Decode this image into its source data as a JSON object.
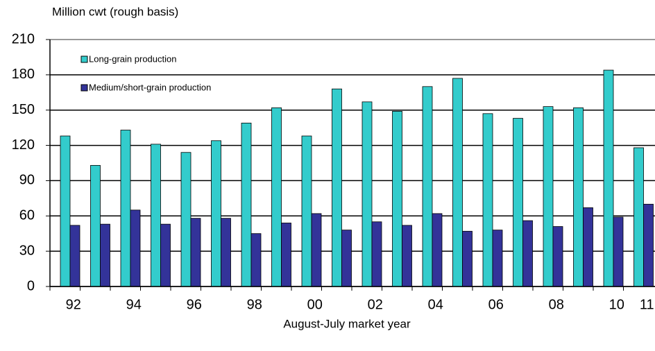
{
  "chart_data": {
    "type": "bar",
    "y_axis_title": "Million cwt (rough basis)",
    "x_axis_title": "August-July market year",
    "categories": [
      "92",
      null,
      "94",
      null,
      "96",
      null,
      "98",
      null,
      "00",
      null,
      "02",
      null,
      "04",
      null,
      "06",
      null,
      "08",
      null,
      "10",
      "11"
    ],
    "series": [
      {
        "name": "Long-grain production",
        "color": "#33cccc",
        "values": [
          128,
          103,
          133,
          121,
          114,
          124,
          139,
          152,
          128,
          168,
          157,
          149,
          170,
          177,
          147,
          143,
          153,
          152,
          184,
          118
        ]
      },
      {
        "name": "Medium/short-grain production",
        "color": "#333399",
        "values": [
          52,
          53,
          65,
          53,
          58,
          58,
          45,
          54,
          62,
          48,
          55,
          52,
          62,
          47,
          48,
          56,
          51,
          67,
          59,
          70
        ]
      }
    ],
    "ylim": [
      0,
      210
    ],
    "yticks": [
      0,
      30,
      60,
      90,
      120,
      150,
      180,
      210
    ],
    "grid": true
  }
}
